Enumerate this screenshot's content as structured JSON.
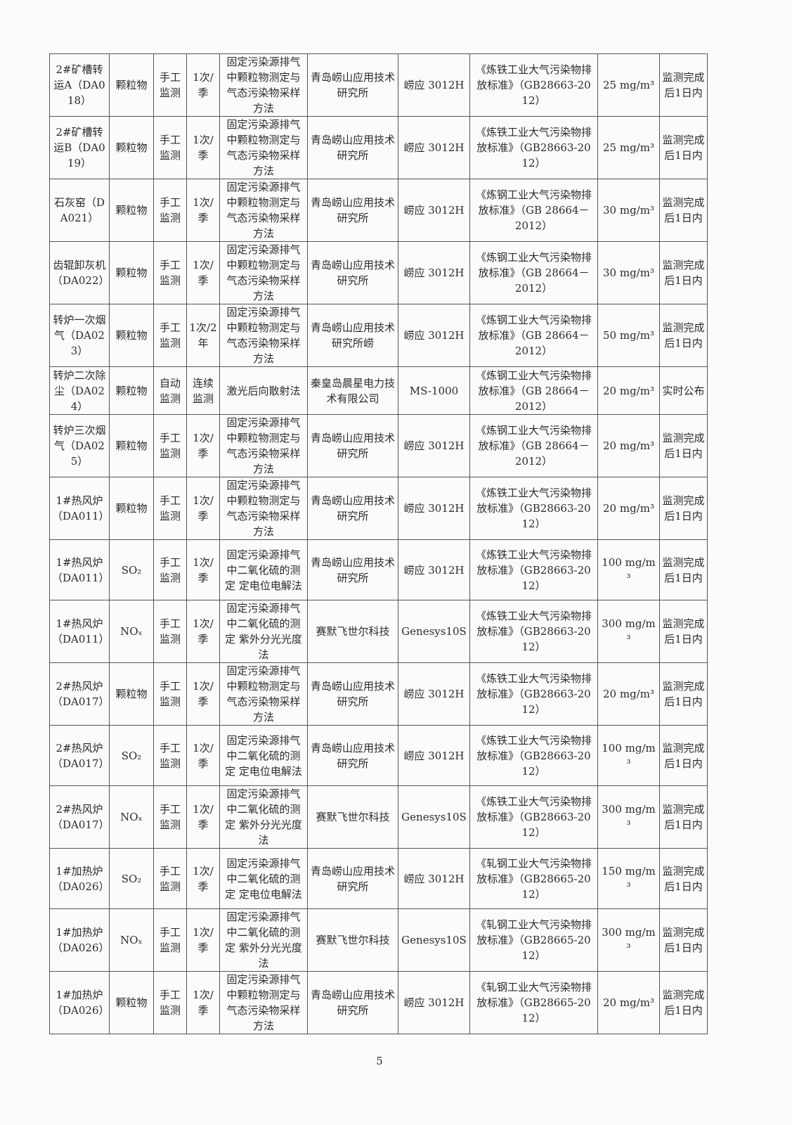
{
  "rows": [
    [
      "2#矿槽转运A（DA018）",
      "颗粒物",
      "手工监测",
      "1次/季",
      "固定污染源排气中颗粒物测定与气态污染物采样方法",
      "青岛崂山应用技术研究所",
      "崂应 3012H",
      "《炼铁工业大气污染物排放标准》（GB28663-2012）",
      "25 mg/m³",
      "监测完成后1日内"
    ],
    [
      "2#矿槽转运B（DA019）",
      "颗粒物",
      "手工监测",
      "1次/季",
      "固定污染源排气中颗粒物测定与气态污染物采样方法",
      "青岛崂山应用技术研究所",
      "崂应 3012H",
      "《炼铁工业大气污染物排放标准》（GB28663-2012）",
      "25 mg/m³",
      "监测完成后1日内"
    ],
    [
      "石灰窑（DA021）",
      "颗粒物",
      "手工监测",
      "1次/季",
      "固定污染源排气中颗粒物测定与气态污染物采样方法",
      "青岛崂山应用技术研究所",
      "崂应 3012H",
      "《炼钢工业大气污染物排放标准》（GB 28664－2012）",
      "30 mg/m³",
      "监测完成后1日内"
    ],
    [
      "齿辊卸灰机（DA022）",
      "颗粒物",
      "手工监测",
      "1次/季",
      "固定污染源排气中颗粒物测定与气态污染物采样方法",
      "青岛崂山应用技术研究所",
      "崂应 3012H",
      "《炼钢工业大气污染物排放标准》（GB 28664－2012）",
      "30 mg/m³",
      "监测完成后1日内"
    ],
    [
      "转炉一次烟气（DA023）",
      "颗粒物",
      "手工监测",
      "1次/2年",
      "固定污染源排气中颗粒物测定与气态污染物采样方法",
      "青岛崂山应用技术研究所崂",
      "崂应 3012H",
      "《炼钢工业大气污染物排放标准》（GB 28664－2012）",
      "50 mg/m³",
      "监测完成后1日内"
    ],
    [
      "转炉二次除尘（DA024）",
      "颗粒物",
      "自动监测",
      "连续监测",
      "激光后向散射法",
      "秦皇岛晨星电力技术有限公司",
      "MS-1000",
      "《炼钢工业大气污染物排放标准》（GB 28664－2012）",
      "20 mg/m³",
      "实时公布"
    ],
    [
      "转炉三次烟气（DA025）",
      "颗粒物",
      "手工监测",
      "1次/季",
      "固定污染源排气中颗粒物测定与气态污染物采样方法",
      "青岛崂山应用技术研究所",
      "崂应 3012H",
      "《炼钢工业大气污染物排放标准》（GB 28664－2012）",
      "20 mg/m³",
      "监测完成后1日内"
    ],
    [
      "1#热风炉（DA011）",
      "颗粒物",
      "手工监测",
      "1次/季",
      "固定污染源排气中颗粒物测定与气态污染物采样方法",
      "青岛崂山应用技术研究所",
      "崂应 3012H",
      "《炼铁工业大气污染物排放标准》（GB28663-2012）",
      "20 mg/m³",
      "监测完成后1日内"
    ],
    [
      "1#热风炉（DA011）",
      "SO₂",
      "手工监测",
      "1次/季",
      "固定污染源排气中二氧化硫的测定 定电位电解法",
      "青岛崂山应用技术研究所",
      "崂应 3012H",
      "《炼铁工业大气污染物排放标准》（GB28663-2012）",
      "100 mg/m³",
      "监测完成后1日内"
    ],
    [
      "1#热风炉（DA011）",
      "NOₓ",
      "手工监测",
      "1次/季",
      "固定污染源排气中二氧化硫的测定 紫外分光光度法",
      "赛默飞世尔科技",
      "Genesys10S",
      "《炼铁工业大气污染物排放标准》（GB28663-2012）",
      "300 mg/m³",
      "监测完成后1日内"
    ],
    [
      "2#热风炉（DA017）",
      "颗粒物",
      "手工监测",
      "1次/季",
      "固定污染源排气中颗粒物测定与气态污染物采样方法",
      "青岛崂山应用技术研究所",
      "崂应 3012H",
      "《炼铁工业大气污染物排放标准》（GB28663-2012）",
      "20 mg/m³",
      "监测完成后1日内"
    ],
    [
      "2#热风炉（DA017）",
      "SO₂",
      "手工监测",
      "1次/季",
      "固定污染源排气中二氧化硫的测定 定电位电解法",
      "青岛崂山应用技术研究所",
      "崂应 3012H",
      "《炼铁工业大气污染物排放标准》（GB28663-2012）",
      "100 mg/m³",
      "监测完成后1日内"
    ],
    [
      "2#热风炉（DA017）",
      "NOₓ",
      "手工监测",
      "1次/季",
      "固定污染源排气中二氧化硫的测定 紫外分光光度法",
      "赛默飞世尔科技",
      "Genesys10S",
      "《炼铁工业大气污染物排放标准》（GB28663-2012）",
      "300 mg/m³",
      "监测完成后1日内"
    ],
    [
      "1#加热炉（DA026）",
      "SO₂",
      "手工监测",
      "1次/季",
      "固定污染源排气中二氧化硫的测定 定电位电解法",
      "青岛崂山应用技术研究所",
      "崂应 3012H",
      "《轧钢工业大气污染物排放标准》（GB28665-2012）",
      "150 mg/m³",
      "监测完成后1日内"
    ],
    [
      "1#加热炉（DA026）",
      "NOₓ",
      "手工监测",
      "1次/季",
      "固定污染源排气中二氧化硫的测定 紫外分光光度法",
      "赛默飞世尔科技",
      "Genesys10S",
      "《轧钢工业大气污染物排放标准》（GB28665-2012）",
      "300 mg/m³",
      "监测完成后1日内"
    ],
    [
      "1#加热炉（DA026）",
      "颗粒物",
      "手工监测",
      "1次/季",
      "固定污染源排气中颗粒物测定与气态污染物采样方法",
      "青岛崂山应用技术研究所",
      "崂应 3012H",
      "《轧钢工业大气污染物排放标准》（GB28665-2012）",
      "20 mg/m³",
      "监测完成后1日内"
    ]
  ],
  "page_number": "5"
}
